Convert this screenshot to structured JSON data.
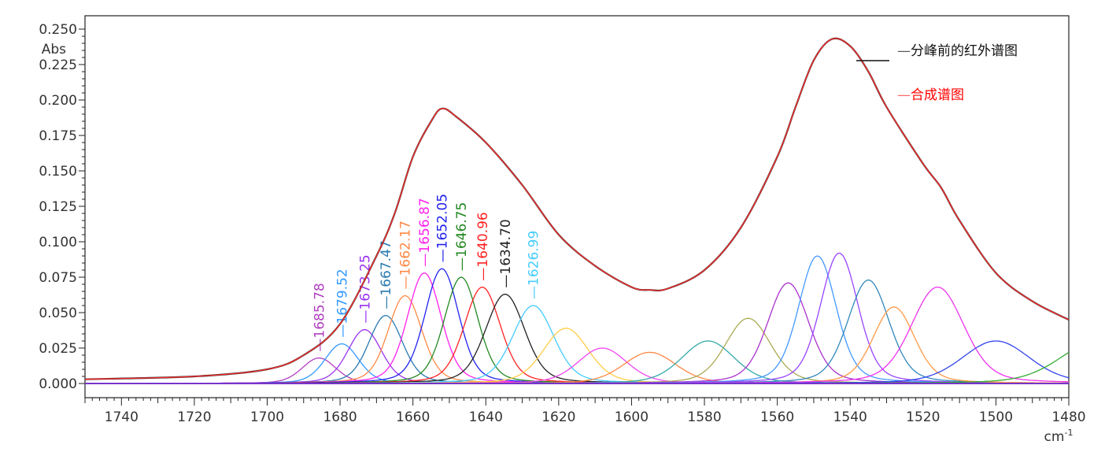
{
  "chart_data": {
    "type": "line",
    "title": "",
    "xlabel": "cm-1",
    "ylabel": "Abs",
    "xlim": [
      1750,
      1480
    ],
    "ylim": [
      0,
      0.25
    ],
    "x_ticks": [
      1740,
      1720,
      1700,
      1680,
      1660,
      1640,
      1620,
      1600,
      1580,
      1560,
      1540,
      1520,
      1500,
      1480
    ],
    "y_ticks": [
      "0.000",
      "0.025",
      "0.050",
      "0.075",
      "0.100",
      "0.125",
      "0.150",
      "0.175",
      "0.200",
      "0.225",
      "0.250"
    ],
    "legend": {
      "placement": "top-right",
      "entries": [
        {
          "label": "分峰前的红外谱图",
          "color": "#222222"
        },
        {
          "label": "合成谱图",
          "color": "#ff0000"
        }
      ]
    },
    "original_spectrum": {
      "x": [
        1750,
        1720,
        1700,
        1690,
        1680,
        1670,
        1665,
        1660,
        1655,
        1652,
        1648,
        1640,
        1630,
        1620,
        1610,
        1600,
        1595,
        1590,
        1580,
        1570,
        1560,
        1555,
        1550,
        1545,
        1540,
        1535,
        1530,
        1520,
        1515,
        1510,
        1500,
        1490,
        1480
      ],
      "y": [
        0.003,
        0.005,
        0.01,
        0.02,
        0.042,
        0.09,
        0.12,
        0.16,
        0.185,
        0.194,
        0.188,
        0.17,
        0.14,
        0.105,
        0.083,
        0.068,
        0.066,
        0.067,
        0.08,
        0.11,
        0.16,
        0.195,
        0.228,
        0.243,
        0.238,
        0.22,
        0.195,
        0.155,
        0.138,
        0.115,
        0.078,
        0.058,
        0.045
      ]
    },
    "fitted_peaks": [
      {
        "center": 1685.78,
        "height": 0.018,
        "width": 4.5,
        "color": "#b040c0",
        "label": "1685.78"
      },
      {
        "center": 1679.52,
        "height": 0.028,
        "width": 4.5,
        "color": "#3399ff",
        "label": "1679.52"
      },
      {
        "center": 1673.25,
        "height": 0.038,
        "width": 4.5,
        "color": "#9933ee",
        "label": "1673.25"
      },
      {
        "center": 1667.47,
        "height": 0.048,
        "width": 4.5,
        "color": "#2a7ab0",
        "label": "1667.47"
      },
      {
        "center": 1662.17,
        "height": 0.062,
        "width": 4.5,
        "color": "#ff8844",
        "label": "1662.17"
      },
      {
        "center": 1656.87,
        "height": 0.078,
        "width": 4.5,
        "color": "#ff22ee",
        "label": "1656.87"
      },
      {
        "center": 1652.05,
        "height": 0.081,
        "width": 4.5,
        "color": "#2222ee",
        "label": "1652.05"
      },
      {
        "center": 1646.75,
        "height": 0.075,
        "width": 4.5,
        "color": "#228822",
        "label": "1646.75"
      },
      {
        "center": 1640.96,
        "height": 0.068,
        "width": 4.8,
        "color": "#ff2222",
        "label": "1640.96"
      },
      {
        "center": 1634.7,
        "height": 0.063,
        "width": 5.2,
        "color": "#222222",
        "label": "1634.70"
      },
      {
        "center": 1626.99,
        "height": 0.055,
        "width": 5.5,
        "color": "#44ccff",
        "label": "1626.99"
      },
      {
        "center": 1618,
        "height": 0.039,
        "width": 6,
        "color": "#ffcc44"
      },
      {
        "center": 1608,
        "height": 0.025,
        "width": 6.5,
        "color": "#ee44ee"
      },
      {
        "center": 1595,
        "height": 0.022,
        "width": 7,
        "color": "#ff8844"
      },
      {
        "center": 1579,
        "height": 0.03,
        "width": 7,
        "color": "#33aaaa"
      },
      {
        "center": 1568,
        "height": 0.046,
        "width": 6,
        "color": "#aaaa55"
      },
      {
        "center": 1557,
        "height": 0.071,
        "width": 5.5,
        "color": "#aa33cc"
      },
      {
        "center": 1549,
        "height": 0.09,
        "width": 5,
        "color": "#4499ff"
      },
      {
        "center": 1543,
        "height": 0.092,
        "width": 5,
        "color": "#9944ff"
      },
      {
        "center": 1535,
        "height": 0.073,
        "width": 5.5,
        "color": "#3388bb"
      },
      {
        "center": 1528,
        "height": 0.054,
        "width": 5.5,
        "color": "#ff9944"
      },
      {
        "center": 1516,
        "height": 0.068,
        "width": 7,
        "color": "#ee33ee"
      },
      {
        "center": 1500,
        "height": 0.03,
        "width": 9,
        "color": "#3344ee"
      },
      {
        "center": 1472,
        "height": 0.03,
        "width": 10,
        "color": "#33aa33"
      }
    ]
  }
}
